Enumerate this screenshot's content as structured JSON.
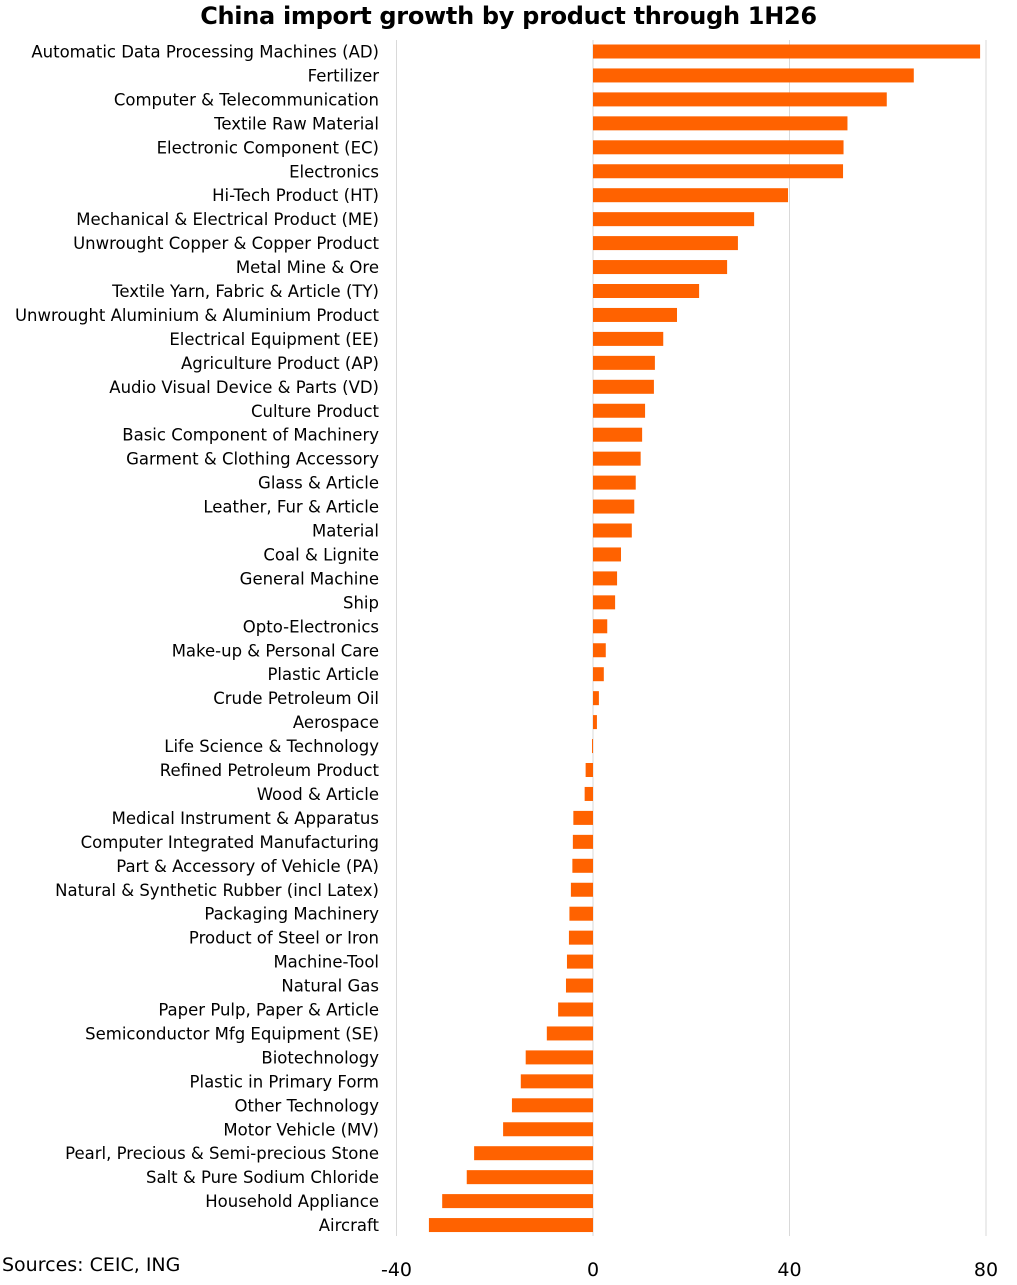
{
  "source": "Sources: CEIC, ING",
  "colors": {
    "bar": "#FF6200",
    "grid": "#d9d9d9"
  },
  "chart_data": {
    "type": "bar",
    "orientation": "horizontal",
    "title": "China import growth by product through 1H26",
    "xlabel": "",
    "ylabel": "",
    "xlim": [
      -40,
      80
    ],
    "xticks": [
      -40,
      0,
      40,
      80
    ],
    "grid": "vertical",
    "legend": "none",
    "categories": [
      "Automatic Data Processing Machines (AD)",
      "Fertilizer",
      "Computer & Telecommunication",
      "Textile Raw Material",
      "Electronic Component (EC)",
      "Electronics",
      "Hi-Tech Product (HT)",
      "Mechanical & Electrical Product (ME)",
      "Unwrought Copper & Copper Product",
      "Metal Mine & Ore",
      "Textile Yarn, Fabric & Article  (TY)",
      "Unwrought Aluminium & Aluminium Product",
      "Electrical Equipment (EE)",
      "Agriculture Product (AP)",
      "Audio Visual Device & Parts (VD)",
      "Culture Product",
      "Basic Component of Machinery",
      "Garment & Clothing Accessory",
      "Glass & Article",
      "Leather, Fur & Article",
      "Material",
      "Coal & Lignite",
      "General Machine",
      "Ship",
      "Opto-Electronics",
      "Make-up & Personal Care",
      "Plastic Article",
      "Crude Petroleum Oil",
      "Aerospace",
      "Life Science & Technology",
      "Refined Petroleum Product",
      "Wood & Article",
      "Medical Instrument & Apparatus",
      "Computer Integrated Manufacturing",
      "Part & Accessory of Vehicle (PA)",
      "Natural & Synthetic Rubber (incl Latex)",
      "Packaging Machinery",
      "Product of Steel or Iron",
      "Machine-Tool",
      "Natural Gas",
      "Paper Pulp, Paper & Article",
      "Semiconductor Mfg Equipment (SE)",
      "Biotechnology",
      "Plastic in Primary Form",
      "Other Technology",
      "Motor Vehicle (MV)",
      "Pearl, Precious & Semi-precious Stone",
      "Salt & Pure Sodium Chloride",
      "Household Appliance",
      "Aircraft"
    ],
    "values": [
      78.8,
      65.3,
      59.8,
      51.8,
      51.0,
      50.9,
      39.7,
      32.8,
      29.5,
      27.3,
      21.6,
      17.1,
      14.3,
      12.6,
      12.4,
      10.6,
      10.0,
      9.7,
      8.7,
      8.4,
      7.9,
      5.7,
      4.9,
      4.5,
      2.9,
      2.6,
      2.2,
      1.2,
      0.8,
      -0.2,
      -1.5,
      -1.7,
      -4.0,
      -4.1,
      -4.2,
      -4.5,
      -4.8,
      -4.9,
      -5.3,
      -5.5,
      -7.1,
      -9.4,
      -13.7,
      -14.7,
      -16.5,
      -18.3,
      -24.2,
      -25.7,
      -30.7,
      -33.4
    ]
  }
}
